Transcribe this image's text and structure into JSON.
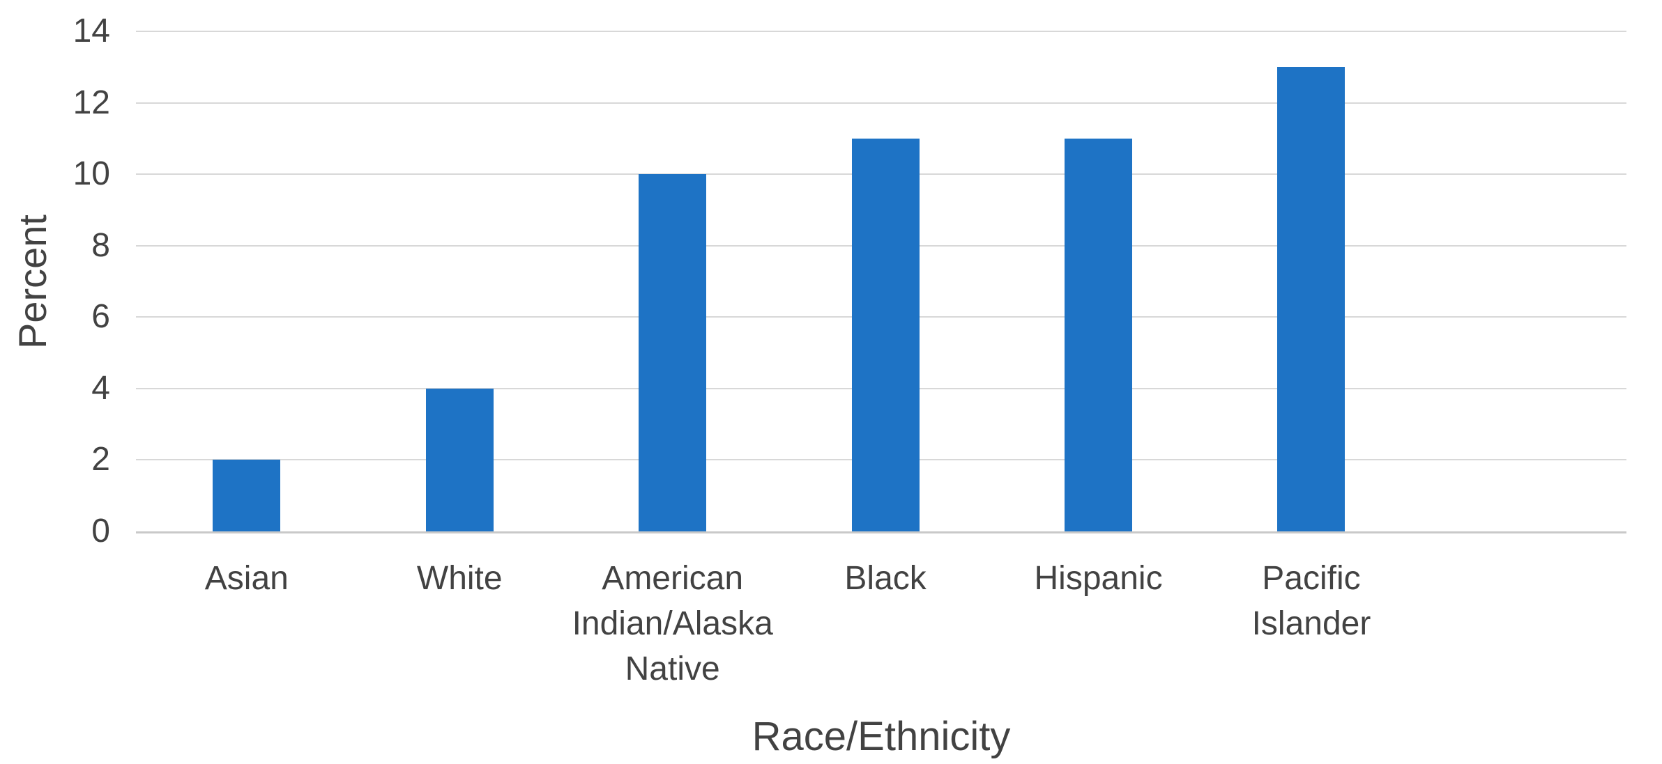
{
  "chart_data": {
    "type": "bar",
    "title": "",
    "categories": [
      "Asian",
      "White",
      "American Indian/Alaska Native",
      "Black",
      "Hispanic",
      "Pacific Islander"
    ],
    "category_label_lines": [
      [
        "Asian"
      ],
      [
        "White"
      ],
      [
        "American",
        "Indian/Alaska",
        "Native"
      ],
      [
        "Black"
      ],
      [
        "Hispanic"
      ],
      [
        "Pacific",
        "Islander"
      ]
    ],
    "values": [
      2,
      4,
      10,
      11,
      11,
      13
    ],
    "xlabel": "Race/Ethnicity",
    "ylabel": "Percent",
    "ylim": [
      0,
      14
    ],
    "yticks": [
      0,
      2,
      4,
      6,
      8,
      10,
      12,
      14
    ],
    "grid": true,
    "legend": false,
    "series_count": 1,
    "bar_color": "#1e73c5",
    "gridline_color": "#d8d8d8",
    "axis_line_color": "#c9c9c9",
    "text_color": "#424242",
    "background_color": "#ffffff"
  }
}
